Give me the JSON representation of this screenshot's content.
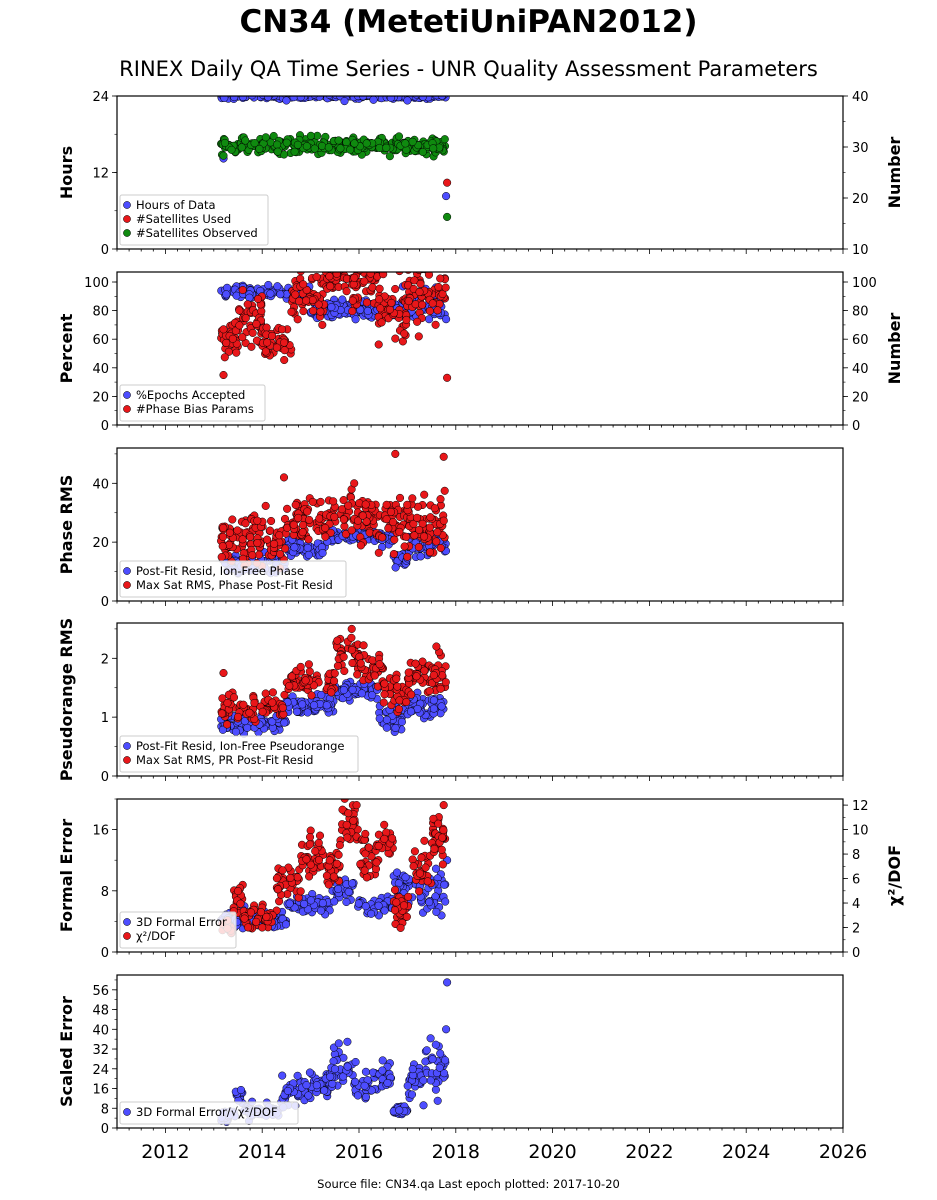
{
  "header": {
    "title": "CN34 (MetetiUniPAN2012)",
    "subtitle": "RINEX Daily QA Time Series - UNR Quality Assessment Parameters"
  },
  "footer": {
    "source": "Source file: CN34.qa Last epoch plotted: 2017-10-20"
  },
  "colors": {
    "blue": "#4d4dff",
    "red": "#e8171a",
    "green": "#0f8a0f",
    "edge": "#000000"
  },
  "chart_data": [
    {
      "type": "scatter",
      "ylabel": "Hours",
      "y2label": "Number",
      "xlim": [
        2011.0,
        2026.0
      ],
      "ylim": [
        0,
        24
      ],
      "y2lim": [
        10,
        40
      ],
      "yticks": [
        0,
        12,
        24
      ],
      "y2ticks": [
        10,
        20,
        30,
        40
      ],
      "legend_position": "lower-left",
      "series": [
        {
          "name": "Hours of Data",
          "color": "blue",
          "axis": "left",
          "segments": [
            {
              "x0": 2013.15,
              "x1": 2017.8,
              "base": 24,
              "noise": 0.2,
              "n": 260
            }
          ],
          "outliers": [
            [
              2013.2,
              14.2
            ],
            [
              2014.5,
              23.3
            ],
            [
              2015.7,
              23.2
            ],
            [
              2016.3,
              23.4
            ],
            [
              2017.0,
              23.3
            ],
            [
              2017.8,
              8.3
            ]
          ]
        },
        {
          "name": "#Satellites Used",
          "color": "red",
          "axis": "right",
          "segments": [],
          "outliers": [
            [
              2017.82,
              23.0
            ]
          ]
        },
        {
          "name": "#Satellites Observed",
          "color": "green",
          "axis": "right",
          "segments": [
            {
              "x0": 2013.15,
              "x1": 2017.8,
              "base": 30.2,
              "noise": 0.8,
              "n": 320
            }
          ],
          "outliers": [
            [
              2013.2,
              28.3
            ],
            [
              2017.82,
              16.3
            ]
          ]
        }
      ]
    },
    {
      "type": "scatter",
      "ylabel": "Percent",
      "y2label": "Number",
      "xlim": [
        2011.0,
        2026.0
      ],
      "ylim": [
        0,
        107
      ],
      "y2lim": [
        0,
        107
      ],
      "yticks": [
        0,
        20,
        40,
        60,
        80,
        100
      ],
      "y2ticks": [
        0,
        20,
        40,
        60,
        80,
        100
      ],
      "legend_position": "lower-left",
      "series": [
        {
          "name": "%Epochs Accepted",
          "color": "blue",
          "axis": "left",
          "segments": [
            {
              "x0": 2013.15,
              "x1": 2015.0,
              "base": 93,
              "noise": 2,
              "n": 130
            },
            {
              "x0": 2015.0,
              "x1": 2016.9,
              "base": 81,
              "noise": 3,
              "n": 130
            },
            {
              "x0": 2016.9,
              "x1": 2017.8,
              "base": 86,
              "noise": 6,
              "n": 70
            }
          ],
          "outliers": [
            [
              2013.2,
              61
            ],
            [
              2017.8,
              74
            ]
          ]
        },
        {
          "name": "#Phase Bias Params",
          "color": "red",
          "axis": "right",
          "segments": [
            {
              "x0": 2013.15,
              "x1": 2013.5,
              "base": 60,
              "noise": 8,
              "n": 35
            },
            {
              "x0": 2013.5,
              "x1": 2014.0,
              "base": 75,
              "noise": 10,
              "n": 45
            },
            {
              "x0": 2014.0,
              "x1": 2014.6,
              "base": 58,
              "noise": 6,
              "n": 45
            },
            {
              "x0": 2014.6,
              "x1": 2015.3,
              "base": 90,
              "noise": 10,
              "n": 60
            },
            {
              "x0": 2015.3,
              "x1": 2015.7,
              "base": 103,
              "noise": 4,
              "n": 35
            },
            {
              "x0": 2015.7,
              "x1": 2016.4,
              "base": 98,
              "noise": 7,
              "n": 55
            },
            {
              "x0": 2016.4,
              "x1": 2017.0,
              "base": 80,
              "noise": 10,
              "n": 50
            },
            {
              "x0": 2017.0,
              "x1": 2017.8,
              "base": 92,
              "noise": 12,
              "n": 65
            }
          ],
          "outliers": [
            [
              2013.2,
              35
            ],
            [
              2017.82,
              33
            ]
          ]
        }
      ]
    },
    {
      "type": "scatter",
      "ylabel": "Phase RMS",
      "xlim": [
        2011.0,
        2026.0
      ],
      "ylim": [
        0,
        52
      ],
      "yticks": [
        0,
        20,
        40
      ],
      "legend_position": "lower-left",
      "series": [
        {
          "name": "Post-Fit Resid, Ion-Free Phase",
          "color": "blue",
          "axis": "left",
          "segments": [
            {
              "x0": 2013.15,
              "x1": 2014.5,
              "base": 13,
              "noise": 1.5,
              "n": 90
            },
            {
              "x0": 2014.5,
              "x1": 2015.3,
              "base": 18,
              "noise": 1.5,
              "n": 50
            },
            {
              "x0": 2015.3,
              "x1": 2016.4,
              "base": 22,
              "noise": 1.2,
              "n": 70
            },
            {
              "x0": 2016.4,
              "x1": 2016.7,
              "base": 21,
              "noise": 1.5,
              "n": 20
            },
            {
              "x0": 2016.7,
              "x1": 2017.0,
              "base": 14,
              "noise": 1,
              "n": 25
            },
            {
              "x0": 2017.0,
              "x1": 2017.8,
              "base": 19,
              "noise": 2,
              "n": 55
            }
          ],
          "outliers": []
        },
        {
          "name": "Max Sat RMS, Phase Post-Fit Resid",
          "color": "red",
          "axis": "left",
          "segments": [
            {
              "x0": 2013.15,
              "x1": 2014.5,
              "base": 21,
              "noise": 4,
              "n": 110
            },
            {
              "x0": 2014.5,
              "x1": 2015.3,
              "base": 27,
              "noise": 4,
              "n": 60
            },
            {
              "x0": 2015.3,
              "x1": 2016.4,
              "base": 29,
              "noise": 4,
              "n": 80
            },
            {
              "x0": 2016.4,
              "x1": 2017.8,
              "base": 26,
              "noise": 5,
              "n": 110
            }
          ],
          "outliers": [
            [
              2016.75,
              50
            ],
            [
              2017.75,
              49
            ],
            [
              2014.45,
              42
            ],
            [
              2015.9,
              40
            ]
          ]
        }
      ]
    },
    {
      "type": "scatter",
      "ylabel": "Pseudorange RMS",
      "xlim": [
        2011.0,
        2026.0
      ],
      "ylim": [
        0,
        2.6
      ],
      "yticks": [
        0,
        1,
        2
      ],
      "legend_position": "lower-left",
      "series": [
        {
          "name": "Post-Fit Resid, Ion-Free Pseudorange",
          "color": "blue",
          "axis": "left",
          "segments": [
            {
              "x0": 2013.15,
              "x1": 2014.5,
              "base": 0.9,
              "noise": 0.07,
              "n": 90
            },
            {
              "x0": 2014.5,
              "x1": 2015.5,
              "base": 1.2,
              "noise": 0.07,
              "n": 70
            },
            {
              "x0": 2015.5,
              "x1": 2016.4,
              "base": 1.45,
              "noise": 0.08,
              "n": 60
            },
            {
              "x0": 2016.4,
              "x1": 2016.9,
              "base": 1.0,
              "noise": 0.12,
              "n": 35
            },
            {
              "x0": 2016.9,
              "x1": 2017.8,
              "base": 1.2,
              "noise": 0.1,
              "n": 60
            }
          ],
          "outliers": []
        },
        {
          "name": "Max Sat RMS, PR Post-Fit Resid",
          "color": "red",
          "axis": "left",
          "segments": [
            {
              "x0": 2013.15,
              "x1": 2014.5,
              "base": 1.15,
              "noise": 0.12,
              "n": 90
            },
            {
              "x0": 2014.5,
              "x1": 2015.5,
              "base": 1.6,
              "noise": 0.12,
              "n": 70
            },
            {
              "x0": 2015.5,
              "x1": 2016.0,
              "base": 2.05,
              "noise": 0.15,
              "n": 40
            },
            {
              "x0": 2016.0,
              "x1": 2016.5,
              "base": 1.85,
              "noise": 0.15,
              "n": 35
            },
            {
              "x0": 2016.5,
              "x1": 2017.0,
              "base": 1.4,
              "noise": 0.15,
              "n": 35
            },
            {
              "x0": 2017.0,
              "x1": 2017.8,
              "base": 1.7,
              "noise": 0.15,
              "n": 60
            }
          ],
          "outliers": [
            [
              2013.2,
              1.75
            ],
            [
              2015.85,
              2.5
            ],
            [
              2017.6,
              2.2
            ]
          ]
        }
      ]
    },
    {
      "type": "scatter",
      "ylabel": "Formal Error",
      "y2label": "χ²/DOF",
      "xlim": [
        2011.0,
        2026.0
      ],
      "ylim": [
        0,
        20
      ],
      "y2lim": [
        0,
        12.5
      ],
      "yticks": [
        0,
        8,
        16
      ],
      "y2ticks": [
        0,
        2,
        4,
        6,
        8,
        10,
        12
      ],
      "legend_position": "lower-left",
      "series": [
        {
          "name": "3D Formal Error",
          "color": "blue",
          "axis": "left",
          "segments": [
            {
              "x0": 2013.15,
              "x1": 2014.5,
              "base": 4.2,
              "noise": 0.6,
              "n": 80
            },
            {
              "x0": 2014.5,
              "x1": 2015.4,
              "base": 6.3,
              "noise": 0.6,
              "n": 60
            },
            {
              "x0": 2015.4,
              "x1": 2015.9,
              "base": 8.2,
              "noise": 0.7,
              "n": 30
            },
            {
              "x0": 2015.9,
              "x1": 2016.7,
              "base": 6.0,
              "noise": 0.6,
              "n": 40
            },
            {
              "x0": 2016.7,
              "x1": 2017.2,
              "base": 8.5,
              "noise": 1.0,
              "n": 35
            },
            {
              "x0": 2017.2,
              "x1": 2017.8,
              "base": 7.5,
              "noise": 1.5,
              "n": 40
            }
          ],
          "outliers": [
            [
              2017.82,
              12
            ]
          ]
        },
        {
          "name": "χ²/DOF",
          "color": "red",
          "axis": "right",
          "segments": [
            {
              "x0": 2013.15,
              "x1": 2013.4,
              "base": 2.2,
              "noise": 0.4,
              "n": 20
            },
            {
              "x0": 2013.4,
              "x1": 2013.6,
              "base": 4.5,
              "noise": 0.8,
              "n": 18
            },
            {
              "x0": 2013.6,
              "x1": 2014.3,
              "base": 2.8,
              "noise": 0.5,
              "n": 45
            },
            {
              "x0": 2014.3,
              "x1": 2014.8,
              "base": 5.5,
              "noise": 0.8,
              "n": 35
            },
            {
              "x0": 2014.8,
              "x1": 2015.3,
              "base": 8.0,
              "noise": 0.8,
              "n": 35
            },
            {
              "x0": 2015.3,
              "x1": 2015.6,
              "base": 7.0,
              "noise": 0.8,
              "n": 25
            },
            {
              "x0": 2015.6,
              "x1": 2016.0,
              "base": 10.3,
              "noise": 0.9,
              "n": 30
            },
            {
              "x0": 2016.0,
              "x1": 2016.4,
              "base": 7.8,
              "noise": 0.8,
              "n": 30
            },
            {
              "x0": 2016.4,
              "x1": 2016.7,
              "base": 9.0,
              "noise": 0.7,
              "n": 20
            },
            {
              "x0": 2016.7,
              "x1": 2017.1,
              "base": 3.5,
              "noise": 0.8,
              "n": 30
            },
            {
              "x0": 2017.1,
              "x1": 2017.5,
              "base": 7.0,
              "noise": 1.0,
              "n": 30
            },
            {
              "x0": 2017.5,
              "x1": 2017.8,
              "base": 9.5,
              "noise": 1.2,
              "n": 30
            }
          ],
          "outliers": [
            [
              2015.95,
              12.0
            ],
            [
              2017.75,
              12.0
            ],
            [
              2014.0,
              2.0
            ]
          ]
        }
      ]
    },
    {
      "type": "scatter",
      "ylabel": "Scaled Error",
      "xlim": [
        2011.0,
        2026.0
      ],
      "ylim": [
        0,
        62
      ],
      "yticks": [
        0,
        8,
        16,
        24,
        32,
        40,
        48,
        56
      ],
      "legend_position": "lower-left",
      "series": [
        {
          "name": "3D Formal Error/√χ²/DOF",
          "color": "blue",
          "axis": "left",
          "segments": [
            {
              "x0": 2013.15,
              "x1": 2013.45,
              "base": 5,
              "noise": 1.5,
              "n": 20
            },
            {
              "x0": 2013.45,
              "x1": 2013.6,
              "base": 13,
              "noise": 3,
              "n": 12
            },
            {
              "x0": 2013.6,
              "x1": 2014.4,
              "base": 7,
              "noise": 1.5,
              "n": 40
            },
            {
              "x0": 2014.4,
              "x1": 2014.9,
              "base": 15,
              "noise": 3,
              "n": 35
            },
            {
              "x0": 2014.9,
              "x1": 2015.4,
              "base": 17,
              "noise": 3,
              "n": 35
            },
            {
              "x0": 2015.4,
              "x1": 2015.9,
              "base": 26,
              "noise": 4,
              "n": 35
            },
            {
              "x0": 2015.9,
              "x1": 2016.4,
              "base": 18,
              "noise": 3,
              "n": 30
            },
            {
              "x0": 2016.4,
              "x1": 2016.7,
              "base": 22,
              "noise": 3,
              "n": 20
            },
            {
              "x0": 2016.7,
              "x1": 2017.0,
              "base": 7,
              "noise": 1,
              "n": 25
            },
            {
              "x0": 2017.0,
              "x1": 2017.3,
              "base": 20,
              "noise": 4,
              "n": 25
            },
            {
              "x0": 2017.3,
              "x1": 2017.8,
              "base": 24,
              "noise": 6,
              "n": 40
            }
          ],
          "outliers": [
            [
              2017.82,
              59
            ],
            [
              2017.8,
              40
            ]
          ]
        }
      ]
    }
  ],
  "x_axis": {
    "tick_labels": [
      "2012",
      "2014",
      "2016",
      "2018",
      "2020",
      "2022",
      "2024",
      "2026"
    ]
  }
}
